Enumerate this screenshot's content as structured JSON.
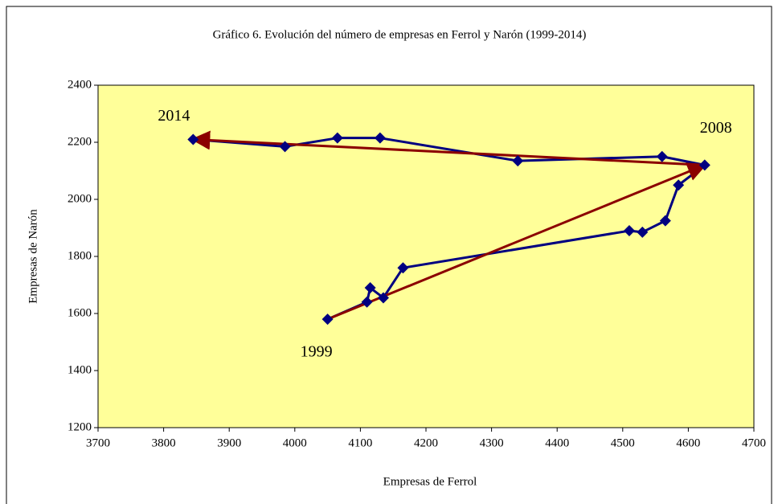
{
  "chart_data": {
    "type": "line",
    "title": "Gráfico 6. Evolución del número de empresas en Ferrol y Narón (1999-2014)",
    "x_label": "Empresas de Ferrol",
    "y_label": "Empresas de Narón",
    "series": [
      {
        "color": "#000080",
        "x": [
          4050,
          4110,
          4115,
          4135,
          4165,
          4510,
          4530,
          4565,
          4585,
          4625,
          4560,
          4340,
          4130,
          4065,
          3985,
          3845
        ],
        "values": [
          1580,
          1640,
          1690,
          1655,
          1760,
          1890,
          1885,
          1925,
          2050,
          2120,
          2150,
          2135,
          2215,
          2215,
          2185,
          2210
        ]
      }
    ],
    "annotations": [
      "1999",
      "2008",
      "2014"
    ],
    "arrow_color": "#8b0000",
    "xlim": [
      3700,
      4700
    ],
    "xticks": [
      3700,
      3800,
      3900,
      4000,
      4100,
      4200,
      4300,
      4400,
      4500,
      4600,
      4700
    ],
    "ylim": [
      1200,
      2400
    ],
    "yticks": [
      1200,
      1400,
      1600,
      1800,
      2000,
      2200,
      2400
    ],
    "background": "#ffff99"
  }
}
